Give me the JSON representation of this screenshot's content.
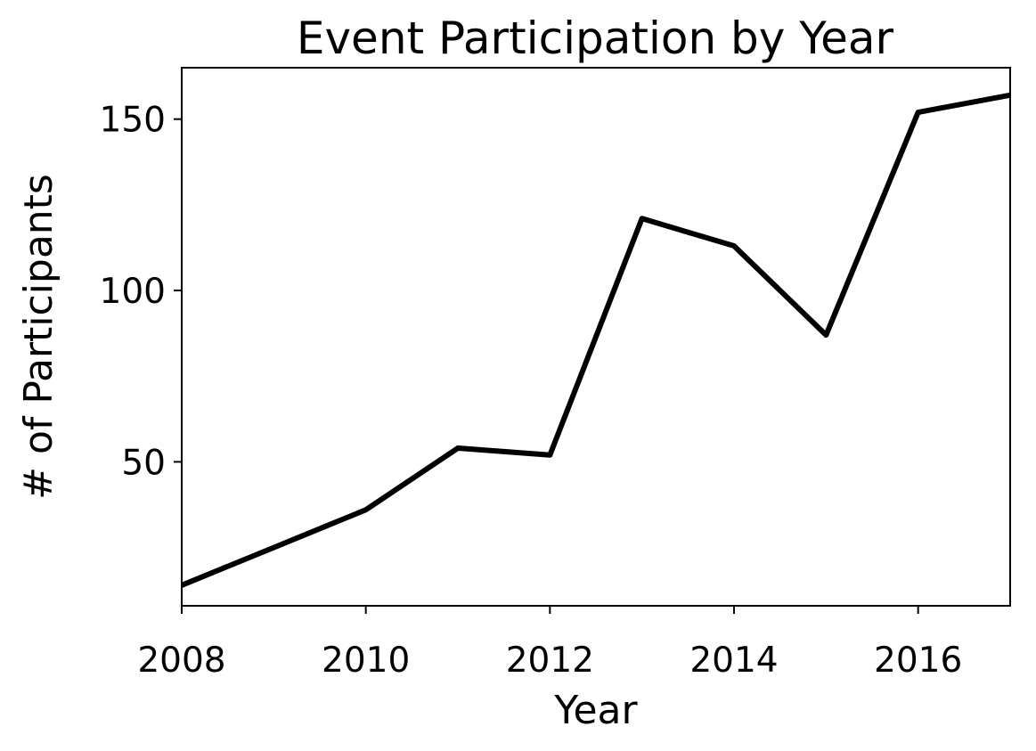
{
  "chart_data": {
    "type": "line",
    "title": "Event Participation by Year",
    "xlabel": "Year",
    "ylabel": "# of Participants",
    "x": [
      2008,
      2009,
      2010,
      2011,
      2012,
      2013,
      2014,
      2015,
      2016,
      2017
    ],
    "series": [
      {
        "values": [
          14,
          25,
          36,
          54,
          52,
          121,
          113,
          87,
          152,
          157
        ],
        "color": "#000000"
      }
    ],
    "xlim": [
      2008,
      2017
    ],
    "ylim": [
      8,
      165
    ],
    "xticks": [
      2008,
      2010,
      2012,
      2014,
      2016
    ],
    "yticks": [
      50,
      100,
      150
    ],
    "xtick_labels": [
      "2008",
      "2010",
      "2012",
      "2014",
      "2016"
    ],
    "ytick_labels": [
      "50",
      "100",
      "150"
    ],
    "grid": false,
    "legend": "none"
  }
}
